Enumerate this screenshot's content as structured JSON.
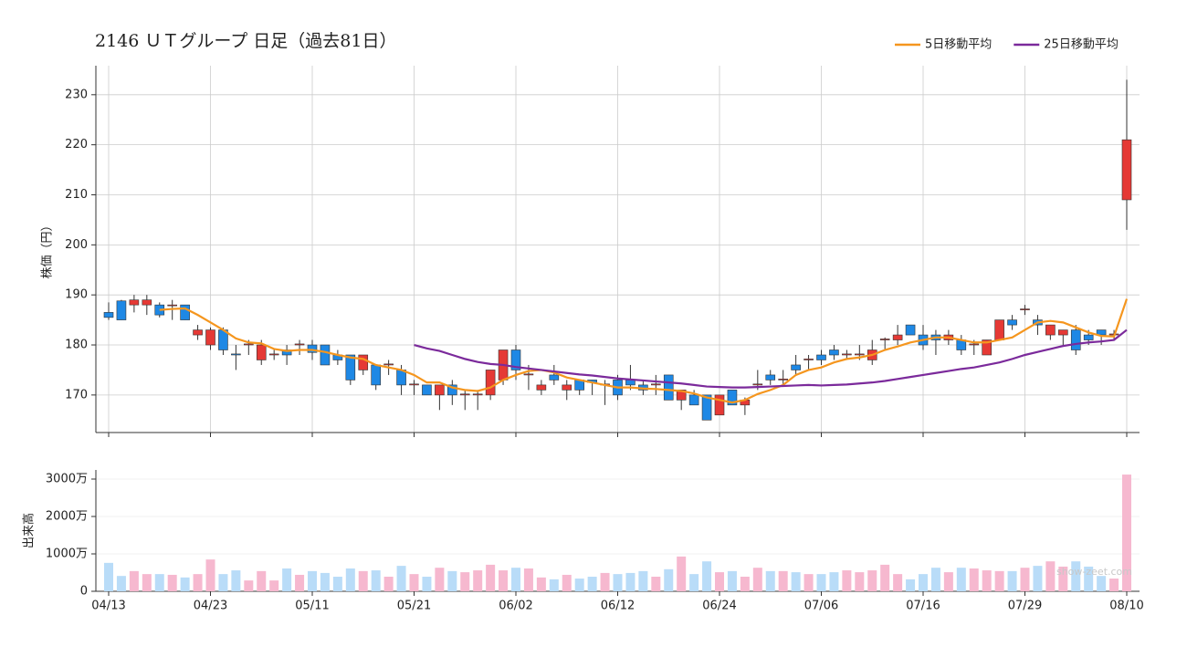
{
  "chart_data": [
    {
      "type": "candlestick",
      "title": "2146 ＵＴグループ  日足（過去81日）",
      "ylabel": "株価（円）",
      "open": [
        186.5,
        188.8,
        188,
        188,
        188,
        188,
        188,
        182,
        180,
        183,
        178.2,
        180,
        177,
        178,
        179,
        180,
        180,
        180,
        178,
        178,
        175,
        176,
        176,
        175,
        172,
        172,
        170,
        172,
        170,
        170,
        170,
        173,
        179,
        174,
        171,
        174,
        171,
        173,
        173,
        172,
        173,
        173,
        172,
        172,
        174,
        169,
        170,
        170,
        166,
        171,
        168,
        172,
        174,
        173,
        176,
        177,
        178,
        179,
        178,
        178,
        177,
        181,
        181,
        184,
        182,
        182,
        181,
        181,
        180,
        178,
        181,
        185,
        187,
        185,
        182,
        182,
        183,
        182,
        183,
        182,
        209
      ],
      "high": [
        188.5,
        189,
        190,
        190,
        188.5,
        189,
        188,
        184,
        183.5,
        183.5,
        180,
        181,
        181,
        179,
        180,
        181,
        181,
        180,
        179,
        178,
        178,
        176,
        177,
        176,
        173,
        172,
        172,
        173,
        171,
        171,
        175,
        179,
        180,
        176,
        173,
        176,
        173,
        173,
        173,
        173,
        174,
        176,
        173,
        174,
        174,
        171,
        171,
        170,
        170,
        171,
        169.5,
        175,
        175,
        175,
        178,
        178,
        179,
        180,
        179,
        180,
        181,
        181.5,
        184,
        184,
        184,
        183,
        183,
        182,
        181,
        181,
        185,
        186,
        188,
        186,
        184,
        183,
        184,
        183,
        183,
        183,
        233
      ],
      "low": [
        185,
        185,
        186.5,
        186,
        185.5,
        185,
        185,
        181,
        179,
        178,
        175,
        178,
        176,
        177,
        176,
        178,
        177,
        176,
        176,
        172,
        174,
        171,
        174,
        170,
        170,
        170,
        167,
        168,
        167,
        167,
        169,
        172,
        173,
        171,
        170,
        172,
        169,
        170,
        170,
        168,
        169,
        171,
        170,
        170,
        169,
        167,
        168,
        165,
        166,
        168,
        166,
        171,
        172,
        172,
        174,
        175,
        176,
        177,
        177,
        177,
        176,
        179,
        180,
        182,
        179,
        178,
        180,
        178,
        178,
        178,
        181,
        183,
        186,
        182,
        181,
        180,
        178,
        180,
        180,
        181,
        203
      ],
      "close": [
        185.5,
        185,
        189,
        189,
        186,
        188,
        185,
        183,
        183,
        179,
        178,
        180.2,
        180,
        178.2,
        178,
        180.2,
        178.5,
        176,
        177,
        173,
        178,
        172,
        176.2,
        172,
        172.2,
        170,
        172,
        170,
        170.2,
        170.2,
        175,
        179,
        175,
        174.2,
        172,
        173,
        172,
        171,
        172.5,
        172.2,
        170,
        172,
        171,
        172.2,
        169,
        171,
        168,
        165,
        170,
        168,
        169,
        172.2,
        173,
        173.2,
        175,
        177.2,
        177,
        178,
        178.2,
        178.2,
        179,
        181.2,
        182,
        182,
        180,
        181,
        182,
        179,
        180.2,
        181,
        185,
        184,
        187.2,
        184,
        184,
        183,
        179,
        181,
        182,
        182.2,
        221
      ],
      "up_color": "#e53935",
      "down_color": "#1e88e5",
      "wick_color": "#333333",
      "ylim": [
        162.5,
        235.8
      ],
      "yticks": [
        170,
        180,
        190,
        200,
        210,
        220,
        230
      ],
      "grid": true,
      "series": [
        {
          "name": "5日移動平均",
          "color": "#f5961e",
          "values": [
            null,
            null,
            null,
            null,
            187,
            187.2,
            187.3,
            186,
            184.5,
            183,
            181.3,
            180.5,
            180.3,
            179.2,
            178.8,
            179,
            179,
            178.6,
            178,
            177.5,
            177.2,
            176,
            175.5,
            175,
            174,
            172.5,
            172.5,
            171.5,
            171,
            170.8,
            171.5,
            173,
            174,
            174.8,
            175,
            174.5,
            173.5,
            173,
            172.5,
            172,
            171.5,
            171.5,
            171.3,
            171.2,
            171,
            170.8,
            170.3,
            169.5,
            169,
            168.5,
            169,
            170.2,
            171,
            172,
            174,
            175,
            175.5,
            176.5,
            177.2,
            177.5,
            178,
            179,
            179.7,
            180.5,
            181,
            181.5,
            181.5,
            181,
            180.5,
            180.5,
            181,
            181.5,
            183,
            184.5,
            184.8,
            184.5,
            183.5,
            182.5,
            181.8,
            181.7,
            189.2
          ]
        },
        {
          "name": "25日移動平均",
          "color": "#7b2a9b",
          "values": [
            null,
            null,
            null,
            null,
            null,
            null,
            null,
            null,
            null,
            null,
            null,
            null,
            null,
            null,
            null,
            null,
            null,
            null,
            null,
            null,
            null,
            null,
            null,
            null,
            180,
            179.3,
            178.8,
            178,
            177.2,
            176.6,
            176.2,
            176,
            175.6,
            175.3,
            175,
            174.7,
            174.4,
            174.1,
            173.9,
            173.6,
            173.3,
            173.1,
            172.9,
            172.7,
            172.5,
            172.3,
            172,
            171.7,
            171.6,
            171.5,
            171.5,
            171.6,
            171.7,
            171.8,
            171.9,
            172,
            171.9,
            172,
            172.1,
            172.3,
            172.5,
            172.8,
            173.2,
            173.6,
            174,
            174.4,
            174.8,
            175.2,
            175.5,
            176,
            176.5,
            177.2,
            178,
            178.6,
            179.2,
            179.8,
            180.2,
            180.5,
            180.7,
            181,
            183
          ]
        }
      ],
      "legend": "upper right"
    },
    {
      "type": "bar",
      "ylabel": "出来高",
      "categories": [
        "04/13",
        null,
        null,
        null,
        null,
        null,
        null,
        null,
        "04/23",
        null,
        null,
        null,
        null,
        null,
        null,
        null,
        "05/11",
        null,
        null,
        null,
        null,
        null,
        null,
        null,
        "05/21",
        null,
        null,
        null,
        null,
        null,
        null,
        null,
        "06/02",
        null,
        null,
        null,
        null,
        null,
        null,
        null,
        "06/12",
        null,
        null,
        null,
        null,
        null,
        null,
        null,
        "06/24",
        null,
        null,
        null,
        null,
        null,
        null,
        null,
        "07/06",
        null,
        null,
        null,
        null,
        null,
        null,
        null,
        "07/16",
        null,
        null,
        null,
        null,
        null,
        null,
        null,
        "07/29",
        null,
        null,
        null,
        null,
        null,
        null,
        null,
        "08/10"
      ],
      "values": [
        760,
        410,
        540,
        460,
        460,
        440,
        370,
        460,
        850,
        460,
        560,
        290,
        540,
        290,
        610,
        440,
        540,
        490,
        390,
        610,
        540,
        560,
        390,
        680,
        460,
        390,
        630,
        540,
        510,
        560,
        710,
        560,
        630,
        610,
        370,
        320,
        440,
        340,
        390,
        490,
        460,
        490,
        540,
        390,
        590,
        930,
        460,
        800,
        510,
        540,
        390,
        630,
        540,
        540,
        510,
        460,
        460,
        510,
        560,
        510,
        560,
        710,
        460,
        320,
        460,
        630,
        510,
        630,
        610,
        560,
        540,
        540,
        630,
        680,
        800,
        660,
        800,
        660,
        410,
        340,
        3120
      ],
      "up_color": "#f6b8cf",
      "down_color": "#b9dcf8",
      "ylim": [
        0,
        3244
      ],
      "yticks": [
        0,
        {
          "value": 1000,
          "label": "1000万"
        },
        {
          "value": 2000,
          "label": "2000万"
        },
        {
          "value": 3000,
          "label": "3000万"
        }
      ],
      "grid": true,
      "watermark": "show-zeet.com"
    }
  ]
}
